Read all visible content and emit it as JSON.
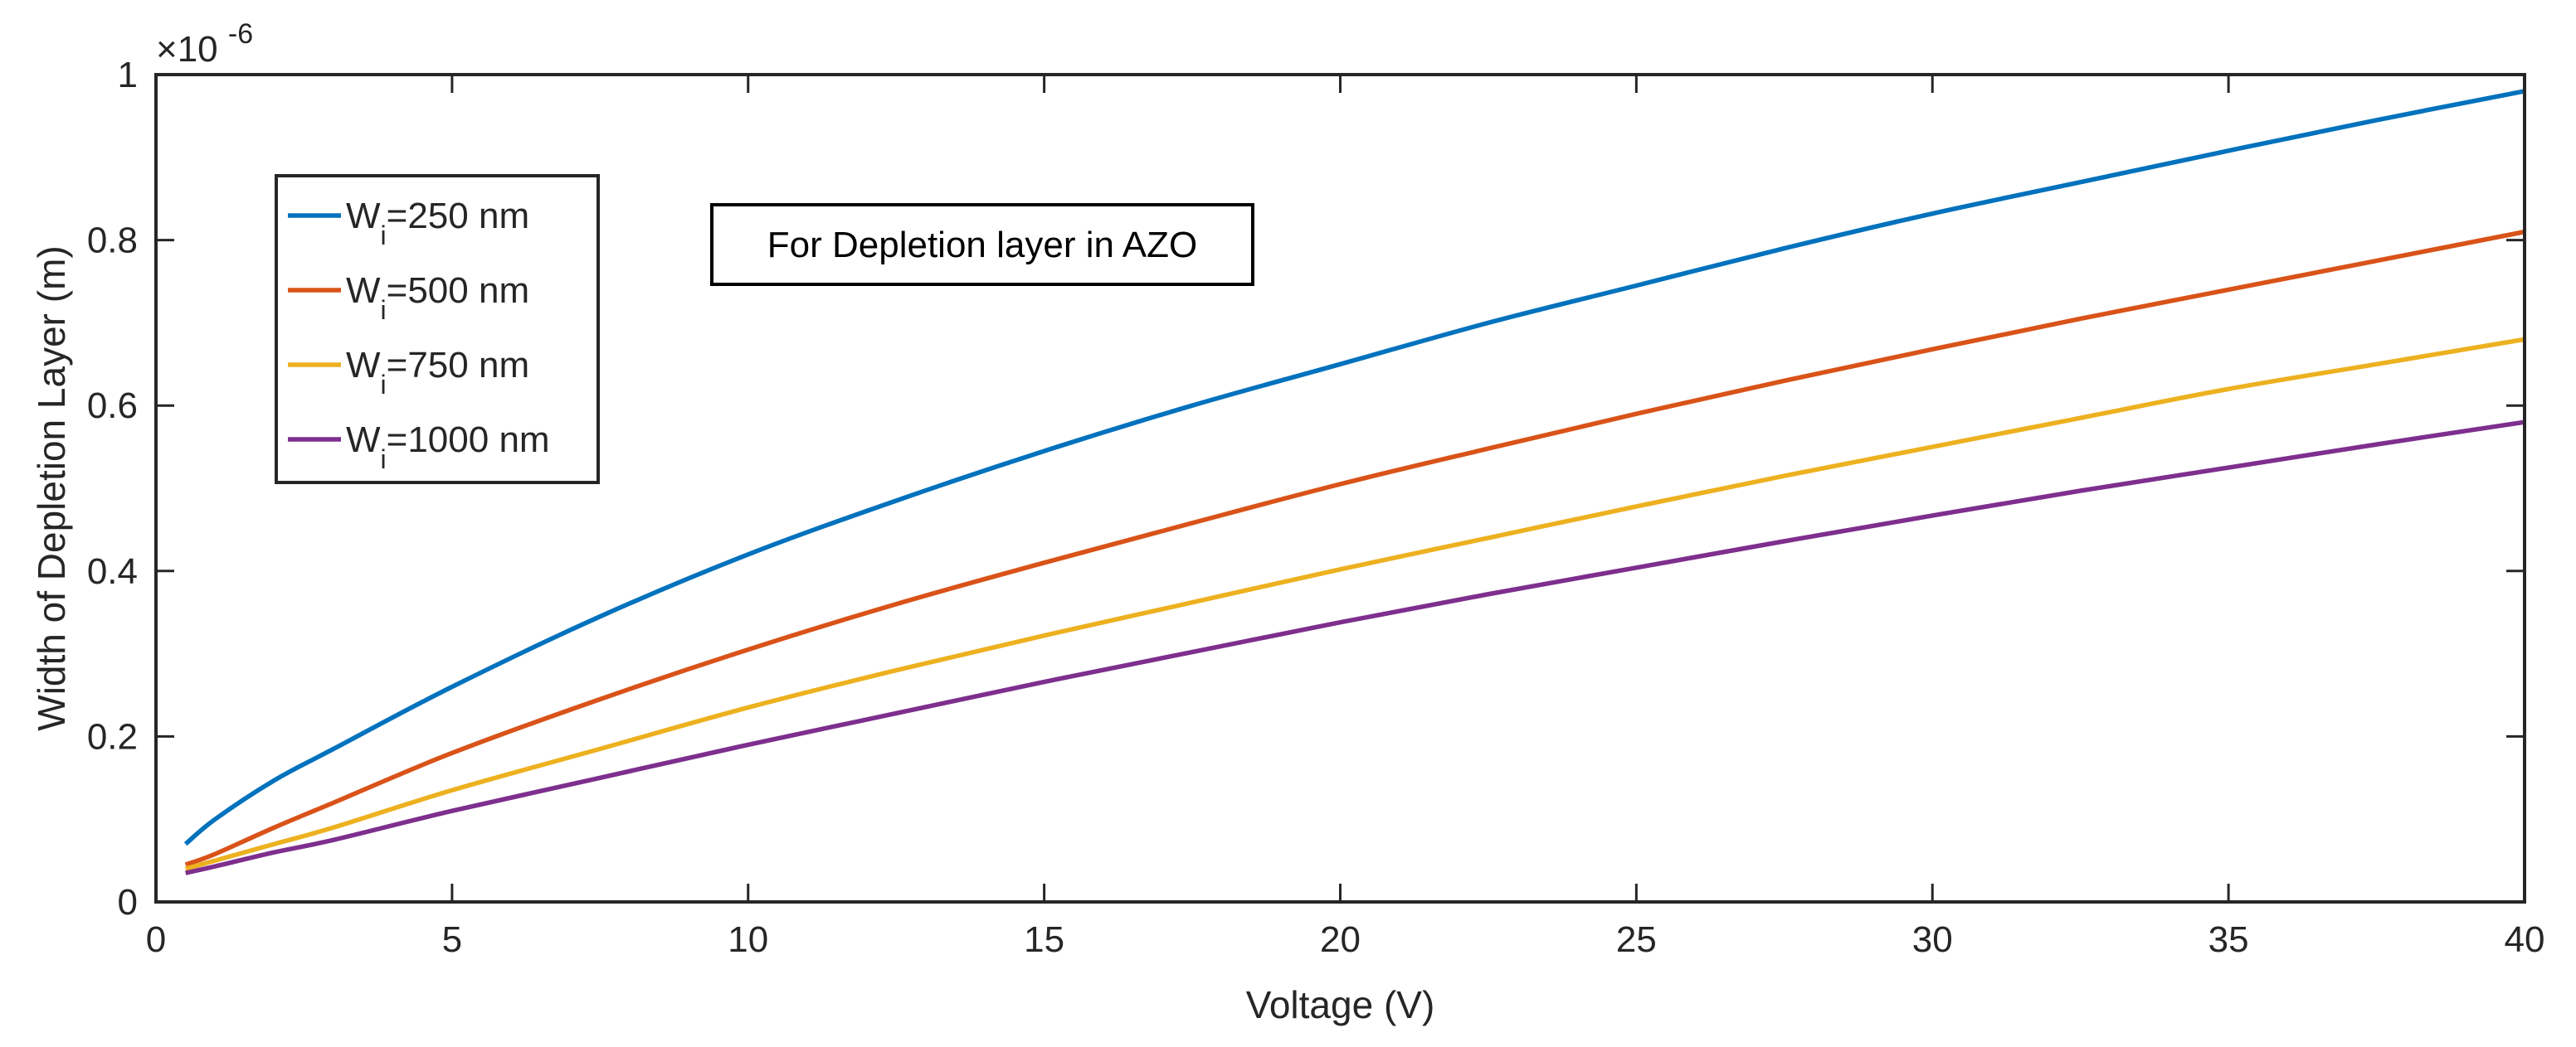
{
  "chart_data": {
    "type": "line",
    "title": "",
    "xlabel": "Voltage (V)",
    "ylabel": "Width of Depletion Layer (m)",
    "y_multiplier": "×10",
    "y_multiplier_exponent": "-6",
    "xlim": [
      0,
      40
    ],
    "ylim": [
      0,
      1
    ],
    "x_ticks": [
      0,
      5,
      10,
      15,
      20,
      25,
      30,
      35,
      40
    ],
    "x_tick_labels": [
      "0",
      "5",
      "10",
      "15",
      "20",
      "25",
      "30",
      "35",
      "40"
    ],
    "y_ticks": [
      0,
      0.2,
      0.4,
      0.6,
      0.8,
      1
    ],
    "y_tick_labels": [
      "0",
      "0.2",
      "0.4",
      "0.6",
      "0.8",
      "1"
    ],
    "grid": false,
    "legend_position": "top-left",
    "annotation": "For Depletion layer in AZO",
    "x": [
      0.5,
      1,
      2,
      3,
      5,
      7.5,
      10,
      12.5,
      15,
      17.5,
      20,
      22.5,
      25,
      27.5,
      30,
      32.5,
      35,
      37.5,
      40
    ],
    "series": [
      {
        "name": "Wi=250 nm",
        "legend_main": "W",
        "legend_sub": "i",
        "legend_rest": "=250 nm",
        "color": "#0072BD",
        "values": [
          0.07,
          0.1,
          0.147,
          0.185,
          0.26,
          0.345,
          0.42,
          0.485,
          0.545,
          0.6,
          0.65,
          0.7,
          0.745,
          0.79,
          0.832,
          0.87,
          0.908,
          0.945,
          0.98
        ]
      },
      {
        "name": "Wi=500 nm",
        "legend_main": "W",
        "legend_sub": "i",
        "legend_rest": "=500 nm",
        "color": "#D95319",
        "values": [
          0.045,
          0.058,
          0.09,
          0.12,
          0.18,
          0.245,
          0.305,
          0.36,
          0.41,
          0.458,
          0.505,
          0.548,
          0.59,
          0.63,
          0.668,
          0.705,
          0.74,
          0.775,
          0.81
        ]
      },
      {
        "name": "Wi=750 nm",
        "legend_main": "W",
        "legend_sub": "i",
        "legend_rest": "=750 nm",
        "color": "#EDB120",
        "values": [
          0.04,
          0.05,
          0.07,
          0.09,
          0.135,
          0.185,
          0.235,
          0.28,
          0.322,
          0.362,
          0.402,
          0.44,
          0.478,
          0.515,
          0.55,
          0.585,
          0.62,
          0.65,
          0.68
        ]
      },
      {
        "name": "Wi=1000 nm",
        "legend_main": "W",
        "legend_sub": "i",
        "legend_rest": "=1000 nm",
        "color": "#7E2F8E",
        "values": [
          0.035,
          0.043,
          0.06,
          0.075,
          0.11,
          0.15,
          0.19,
          0.228,
          0.266,
          0.302,
          0.338,
          0.372,
          0.404,
          0.436,
          0.467,
          0.497,
          0.525,
          0.553,
          0.58
        ]
      }
    ]
  }
}
